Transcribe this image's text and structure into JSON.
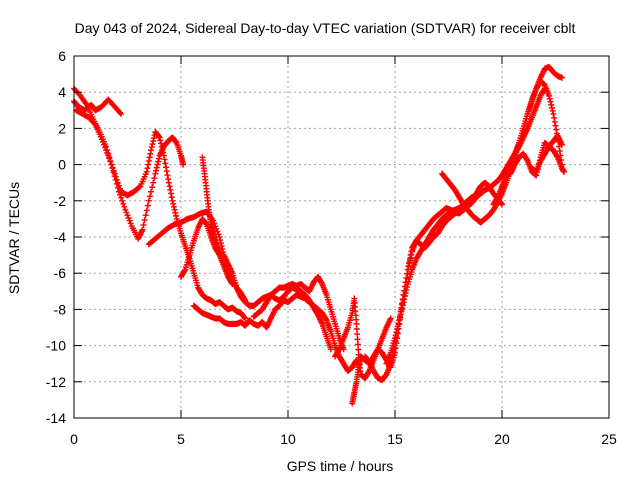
{
  "chart_data": {
    "type": "scatter",
    "title": "Day 043 of 2024, Sidereal Day-to-day VTEC variation (SDTVAR) for receiver cblt",
    "xlabel": "GPS time / hours",
    "ylabel": "SDTVAR / TECUs",
    "xlim": [
      0,
      25
    ],
    "ylim": [
      -14,
      6
    ],
    "xticks": [
      0,
      5,
      10,
      15,
      20,
      25
    ],
    "xtick_labels": [
      "0",
      "5",
      "10",
      "15",
      "20",
      "25"
    ],
    "yticks": [
      -14,
      -12,
      -10,
      -8,
      -6,
      -4,
      -2,
      0,
      2,
      4,
      6
    ],
    "ytick_labels": [
      "-14",
      "-12",
      "-10",
      "-8",
      "-6",
      "-4",
      "-2",
      "0",
      "2",
      "4",
      "6"
    ],
    "grid": true,
    "marker": "+",
    "color": "#ff0000",
    "series": [
      {
        "x": [
          0.0,
          0.3,
          0.6,
          0.9,
          1.2,
          1.5,
          1.8,
          2.1,
          2.4,
          2.7,
          3.0,
          3.2,
          3.5,
          3.8,
          4.0,
          4.2,
          4.4,
          4.6,
          4.8,
          5.0,
          5.1
        ],
        "y": [
          4.2,
          3.8,
          3.3,
          2.5,
          1.8,
          1.0,
          -0.2,
          -1.5,
          -2.5,
          -3.4,
          -4.1,
          -3.6,
          -2.0,
          -0.5,
          0.5,
          1.0,
          1.3,
          1.5,
          1.2,
          0.5,
          0.0
        ]
      },
      {
        "x": [
          0.0,
          0.2,
          0.5,
          0.8,
          1.0,
          1.3,
          1.6,
          1.9,
          2.2
        ],
        "y": [
          3.5,
          3.2,
          3.0,
          3.3,
          3.0,
          3.2,
          3.6,
          3.2,
          2.8
        ]
      },
      {
        "x": [
          0.1,
          0.4,
          0.7,
          1.0,
          1.3,
          1.6,
          1.9,
          2.2,
          2.5,
          2.8,
          3.1,
          3.4,
          3.6,
          3.8,
          4.0,
          4.2,
          4.4,
          4.6,
          4.8,
          5.0,
          5.2,
          5.4,
          5.6,
          5.8,
          6.0,
          6.2,
          6.4,
          6.6,
          6.8,
          7.0,
          7.2,
          7.4,
          7.6,
          7.8,
          8.0
        ],
        "y": [
          3.0,
          2.8,
          2.6,
          2.2,
          1.4,
          0.5,
          -0.5,
          -1.5,
          -1.7,
          -1.5,
          -1.2,
          -0.4,
          0.8,
          1.8,
          1.5,
          0.5,
          -0.8,
          -2.0,
          -3.0,
          -3.8,
          -4.5,
          -5.2,
          -6.0,
          -6.8,
          -7.2,
          -7.4,
          -7.5,
          -7.7,
          -7.6,
          -7.8,
          -8.0,
          -7.9,
          -8.1,
          -8.2,
          -8.5
        ]
      },
      {
        "x": [
          3.5,
          3.8,
          4.1,
          4.4,
          4.7,
          5.0,
          5.3,
          5.6,
          5.9,
          6.2,
          6.5,
          6.8,
          7.0,
          7.2,
          7.4,
          7.6,
          7.8,
          8.0,
          8.2,
          8.4,
          8.6,
          8.8,
          9.0,
          9.2,
          9.4,
          9.6,
          9.8,
          10.0,
          10.2,
          10.4,
          10.6,
          10.8,
          11.0,
          11.2,
          11.4,
          11.6,
          11.8,
          12.0
        ],
        "y": [
          -4.4,
          -4.1,
          -3.8,
          -3.5,
          -3.3,
          -3.2,
          -3.0,
          -2.9,
          -2.7,
          -2.6,
          -3.1,
          -4.0,
          -5.0,
          -5.5,
          -6.0,
          -6.8,
          -7.3,
          -7.6,
          -7.8,
          -7.8,
          -7.6,
          -7.4,
          -7.3,
          -7.2,
          -7.4,
          -7.5,
          -7.3,
          -7.0,
          -6.8,
          -6.9,
          -7.0,
          -7.2,
          -7.5,
          -7.9,
          -8.3,
          -8.8,
          -9.5,
          -10.2
        ]
      },
      {
        "x": [
          5.0,
          5.2,
          5.4,
          5.6,
          5.8,
          6.0,
          6.2,
          6.4,
          6.6,
          6.8,
          7.0,
          7.2,
          7.4
        ],
        "y": [
          -6.2,
          -5.8,
          -5.0,
          -4.2,
          -3.5,
          -3.0,
          -3.3,
          -4.0,
          -4.6,
          -5.0,
          -5.6,
          -6.2,
          -6.6
        ]
      },
      {
        "x": [
          6.0,
          6.1,
          6.2,
          6.3,
          6.4,
          6.5,
          6.6,
          6.8,
          7.0,
          7.2,
          7.4,
          7.6,
          7.8,
          8.0
        ],
        "y": [
          0.4,
          -0.5,
          -1.5,
          -2.5,
          -3.3,
          -3.8,
          -4.2,
          -4.8,
          -5.4,
          -6.0,
          -6.4,
          -6.8,
          -7.1,
          -7.5
        ]
      },
      {
        "x": [
          5.6,
          5.8,
          6.0,
          6.2,
          6.4,
          6.6,
          6.8,
          7.0,
          7.2,
          7.4,
          7.6,
          7.8,
          8.0,
          8.2,
          8.4,
          8.6,
          8.8,
          9.0,
          9.2,
          9.4,
          9.6,
          9.8,
          10.0,
          10.2,
          10.4,
          10.6,
          10.8,
          11.0,
          11.2,
          11.4,
          11.6,
          11.8,
          12.0,
          12.2,
          12.4,
          12.6,
          12.8,
          13.0,
          13.2
        ],
        "y": [
          -7.8,
          -8.0,
          -8.2,
          -8.3,
          -8.4,
          -8.5,
          -8.5,
          -8.7,
          -8.8,
          -8.8,
          -8.8,
          -8.7,
          -8.9,
          -8.6,
          -8.8,
          -8.9,
          -8.7,
          -9.0,
          -8.5,
          -8.0,
          -7.8,
          -7.5,
          -7.6,
          -7.4,
          -7.2,
          -7.3,
          -7.4,
          -7.6,
          -7.8,
          -8.0,
          -8.2,
          -8.6,
          -9.2,
          -10.0,
          -10.6,
          -11.0,
          -11.4,
          -11.2,
          -10.8
        ]
      },
      {
        "x": [
          8.4,
          8.6,
          8.8,
          9.0,
          9.2,
          9.4,
          9.6,
          9.8,
          10.0,
          10.2,
          10.4,
          10.6,
          10.8,
          11.0,
          11.2,
          11.4,
          11.6,
          11.8,
          12.0,
          12.2,
          12.4,
          12.6
        ],
        "y": [
          -8.4,
          -8.2,
          -8.0,
          -7.6,
          -7.2,
          -7.0,
          -6.8,
          -6.8,
          -6.7,
          -6.6,
          -6.7,
          -6.6,
          -6.8,
          -7.0,
          -6.5,
          -6.2,
          -6.6,
          -7.2,
          -8.0,
          -8.8,
          -9.6,
          -10.2
        ]
      },
      {
        "x": [
          12.2,
          12.4,
          12.6,
          12.8,
          13.0,
          13.1,
          13.2,
          13.3,
          13.4,
          13.6,
          13.8,
          14.0,
          14.2,
          14.4,
          14.6,
          14.8
        ],
        "y": [
          -10.6,
          -10.2,
          -9.6,
          -9.0,
          -8.2,
          -7.4,
          -8.8,
          -10.5,
          -11.6,
          -11.8,
          -11.4,
          -10.8,
          -10.2,
          -9.6,
          -9.0,
          -8.5
        ]
      },
      {
        "x": [
          13.0,
          13.1,
          13.2,
          13.3,
          13.4,
          13.6,
          13.8,
          14.0,
          14.2,
          14.4,
          14.6,
          14.8,
          15.0,
          15.2,
          15.4,
          15.6,
          15.8,
          16.0,
          16.2,
          16.4,
          16.6,
          16.8,
          17.0,
          17.2,
          17.4,
          17.6,
          17.8,
          18.0,
          18.2,
          18.4,
          18.6,
          18.8,
          19.0,
          19.2,
          19.4
        ],
        "y": [
          -13.2,
          -12.6,
          -12.0,
          -11.2,
          -10.6,
          -10.8,
          -11.0,
          -10.6,
          -10.2,
          -10.4,
          -10.8,
          -11.2,
          -10.4,
          -8.8,
          -7.2,
          -5.8,
          -4.6,
          -4.2,
          -4.4,
          -4.6,
          -4.3,
          -4.0,
          -3.8,
          -3.4,
          -3.1,
          -2.9,
          -2.7,
          -2.6,
          -2.5,
          -2.3,
          -2.1,
          -1.8,
          -1.6,
          -1.4,
          -1.2
        ]
      },
      {
        "x": [
          13.6,
          13.8,
          14.0,
          14.2,
          14.4,
          14.6,
          14.8,
          15.0,
          15.2,
          15.4,
          15.6,
          15.8,
          16.0,
          16.2,
          16.4,
          16.6,
          16.8,
          17.0,
          17.2,
          17.4,
          17.6,
          17.8,
          18.0,
          18.2,
          18.4,
          18.6,
          18.8,
          19.0,
          19.2,
          19.4,
          19.6,
          19.8,
          20.0
        ],
        "y": [
          -10.6,
          -10.9,
          -11.4,
          -11.8,
          -11.9,
          -11.6,
          -11.0,
          -10.0,
          -8.6,
          -7.2,
          -5.8,
          -4.8,
          -4.2,
          -3.9,
          -3.6,
          -3.3,
          -3.0,
          -2.8,
          -2.6,
          -2.4,
          -2.5,
          -2.6,
          -2.7,
          -2.5,
          -2.3,
          -2.0,
          -1.6,
          -1.2,
          -1.0,
          -1.2,
          -1.6,
          -1.9,
          -2.2
        ]
      },
      {
        "x": [
          14.6,
          14.8,
          15.0,
          15.2,
          15.4,
          15.6,
          15.8,
          16.0,
          16.2,
          16.4,
          16.6,
          16.8,
          17.0,
          17.2,
          17.4,
          17.6,
          17.8,
          18.0,
          18.2,
          18.4,
          18.6,
          18.8,
          19.0,
          19.2,
          19.4,
          19.6,
          19.8,
          20.0,
          20.2,
          20.4,
          20.6,
          20.8,
          21.0,
          21.2,
          21.4,
          21.6,
          21.8,
          22.0
        ],
        "y": [
          -11.0,
          -10.4,
          -9.6,
          -8.6,
          -7.6,
          -6.6,
          -5.8,
          -5.2,
          -4.8,
          -4.4,
          -4.0,
          -3.6,
          -3.3,
          -3.0,
          -2.8,
          -2.6,
          -2.5,
          -2.4,
          -2.2,
          -2.0,
          -1.8,
          -1.7,
          -1.6,
          -1.4,
          -1.3,
          -1.1,
          -0.9,
          -0.6,
          -0.2,
          0.2,
          0.6,
          1.0,
          1.5,
          2.0,
          2.6,
          3.2,
          3.8,
          4.2
        ]
      },
      {
        "x": [
          17.2,
          17.4,
          17.6,
          17.8,
          18.0,
          18.2,
          18.4,
          18.6,
          18.8,
          19.0,
          19.2,
          19.4,
          19.6,
          19.8,
          20.0,
          20.2,
          20.4,
          20.6,
          20.8,
          21.0,
          21.2,
          21.4,
          21.6,
          21.8,
          22.0,
          22.2,
          22.4,
          22.6,
          22.8
        ],
        "y": [
          -0.5,
          -0.8,
          -1.1,
          -1.4,
          -1.8,
          -2.2,
          -2.5,
          -2.8,
          -3.0,
          -3.2,
          -3.0,
          -2.8,
          -2.5,
          -2.1,
          -1.6,
          -1.0,
          -0.3,
          0.4,
          1.2,
          2.0,
          2.8,
          3.5,
          4.2,
          4.6,
          4.4,
          3.8,
          2.8,
          1.5,
          0.0
        ]
      },
      {
        "x": [
          19.6,
          19.8,
          20.0,
          20.2,
          20.4,
          20.6,
          20.8,
          21.0,
          21.2,
          21.4,
          21.6,
          21.8,
          22.0,
          22.2,
          22.4,
          22.6,
          22.8
        ],
        "y": [
          -2.2,
          -1.8,
          -1.2,
          -0.6,
          0.0,
          0.6,
          1.2,
          2.0,
          2.8,
          3.6,
          4.2,
          4.8,
          5.3,
          5.4,
          5.1,
          4.9,
          4.8
        ]
      },
      {
        "x": [
          20.4,
          20.6,
          20.8,
          21.0,
          21.2,
          21.4,
          21.6,
          21.8,
          22.0,
          22.2,
          22.4,
          22.6,
          22.8
        ],
        "y": [
          -0.5,
          0.0,
          0.4,
          0.6,
          0.2,
          -0.4,
          -0.6,
          0.4,
          1.2,
          1.0,
          1.3,
          1.6,
          1.1
        ]
      },
      {
        "x": [
          21.4,
          21.6,
          21.8,
          22.0,
          22.2,
          22.4,
          22.6,
          22.8,
          22.9
        ],
        "y": [
          -0.2,
          -0.4,
          0.2,
          0.6,
          1.0,
          0.8,
          0.4,
          -0.2,
          -0.4
        ]
      }
    ]
  }
}
